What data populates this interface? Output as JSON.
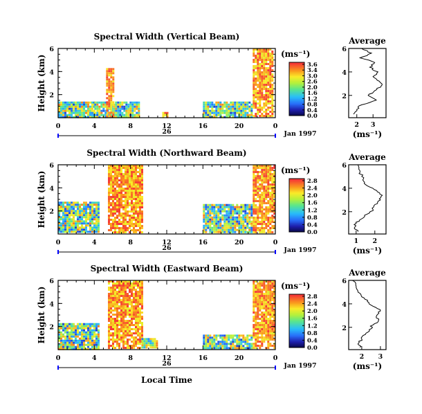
{
  "chart_data": [
    {
      "type": "heatmap",
      "title": "Spectral Width (Vertical Beam)",
      "ylabel": "Height (km)",
      "x_range": [
        0,
        24
      ],
      "y_range": [
        0,
        6
      ],
      "xticks": [
        "0",
        "4",
        "8",
        "12",
        "16",
        "20",
        "0"
      ],
      "yticks": [
        "6",
        "4",
        "2"
      ],
      "date_label": "26",
      "month_label": "Jan 1997",
      "colorbar": {
        "unit": "(ms⁻¹)",
        "tick_labels": [
          "3.6",
          "3.4",
          "3.0",
          "2.6",
          "2.0",
          "1.6",
          "1.2",
          "0.8",
          "0.4",
          "0.0"
        ],
        "range": [
          0,
          3.6
        ]
      },
      "data_extents": [
        {
          "t_start": 0.0,
          "t_end": 4.0,
          "h_min": 0.1,
          "h_max": 1.4
        },
        {
          "t_start": 4.0,
          "t_end": 9.0,
          "h_min": 0.1,
          "h_max": 1.4
        },
        {
          "t_start": 5.3,
          "t_end": 6.0,
          "h_min": 0.1,
          "h_max": 4.3
        },
        {
          "t_start": 11.5,
          "t_end": 12.0,
          "h_min": 0.1,
          "h_max": 0.5
        },
        {
          "t_start": 16.0,
          "t_end": 21.5,
          "h_min": 0.1,
          "h_max": 1.4
        },
        {
          "t_start": 21.5,
          "t_end": 23.7,
          "h_min": 0.1,
          "h_max": 6.0
        }
      ],
      "average_profile": {
        "title": "Average",
        "xlabel": "(ms⁻¹)",
        "xticks": [
          "2",
          "3"
        ],
        "xlim": [
          1.5,
          3.8
        ],
        "yticks": [
          "6",
          "4",
          "2"
        ],
        "ylim": [
          0.1,
          6.0
        ],
        "heights": [
          6.0,
          5.6,
          5.2,
          4.8,
          4.4,
          4.0,
          3.6,
          3.2,
          2.8,
          2.4,
          2.0,
          1.6,
          1.2,
          0.8,
          0.4
        ],
        "values": [
          2.3,
          2.9,
          2.2,
          3.1,
          2.8,
          3.3,
          3.0,
          3.4,
          3.5,
          3.1,
          2.7,
          3.2,
          2.3,
          2.0,
          1.8
        ]
      }
    },
    {
      "type": "heatmap",
      "title": "Spectral Width (Northward Beam)",
      "ylabel": "Height (km)",
      "x_range": [
        0,
        24
      ],
      "y_range": [
        0,
        6
      ],
      "xticks": [
        "0",
        "4",
        "8",
        "12",
        "16",
        "20",
        "0"
      ],
      "yticks": [
        "6",
        "4",
        "2"
      ],
      "date_label": "26",
      "month_label": "Jan 1997",
      "colorbar": {
        "unit": "(ms⁻¹)",
        "tick_labels": [
          "2.8",
          "2.4",
          "2.0",
          "1.6",
          "1.2",
          "0.8",
          "0.4",
          "0.0"
        ],
        "range": [
          0,
          2.8
        ]
      },
      "data_extents": [
        {
          "t_start": 0.0,
          "t_end": 4.5,
          "h_min": 0.1,
          "h_max": 2.8
        },
        {
          "t_start": 5.5,
          "t_end": 9.2,
          "h_min": 0.1,
          "h_max": 6.0
        },
        {
          "t_start": 16.0,
          "t_end": 21.5,
          "h_min": 0.1,
          "h_max": 2.6
        },
        {
          "t_start": 21.5,
          "t_end": 24.0,
          "h_min": 0.1,
          "h_max": 6.0
        }
      ],
      "average_profile": {
        "title": "Average",
        "xlabel": "(ms⁻¹)",
        "xticks": [
          "1",
          "2"
        ],
        "xlim": [
          0.6,
          2.6
        ],
        "yticks": [
          "6",
          "4",
          "2"
        ],
        "ylim": [
          0.1,
          6.0
        ],
        "heights": [
          6.0,
          5.5,
          5.0,
          4.6,
          4.2,
          3.8,
          3.4,
          3.0,
          2.6,
          2.2,
          1.8,
          1.4,
          1.0,
          0.6,
          0.3
        ],
        "values": [
          1.1,
          1.2,
          1.3,
          1.4,
          1.6,
          2.1,
          2.4,
          2.3,
          2.0,
          1.9,
          1.6,
          1.3,
          1.0,
          0.9,
          1.1
        ]
      }
    },
    {
      "type": "heatmap",
      "title": "Spectral Width (Eastward Beam)",
      "ylabel": "Height (km)",
      "xlabel": "Local Time",
      "x_range": [
        0,
        24
      ],
      "y_range": [
        0,
        6
      ],
      "xticks": [
        "0",
        "4",
        "8",
        "12",
        "16",
        "20",
        "0"
      ],
      "yticks": [
        "6",
        "4",
        "2"
      ],
      "date_label": "26",
      "month_label": "Jan 1997",
      "colorbar": {
        "unit": "(ms⁻¹)",
        "tick_labels": [
          "2.8",
          "2.4",
          "2.0",
          "1.6",
          "1.2",
          "0.8",
          "0.4",
          "0.0"
        ],
        "range": [
          0,
          2.8
        ]
      },
      "data_extents": [
        {
          "t_start": 0.0,
          "t_end": 4.5,
          "h_min": 0.1,
          "h_max": 2.3
        },
        {
          "t_start": 5.5,
          "t_end": 9.2,
          "h_min": 0.1,
          "h_max": 6.0
        },
        {
          "t_start": 9.2,
          "t_end": 11.0,
          "h_min": 0.1,
          "h_max": 1.0
        },
        {
          "t_start": 16.0,
          "t_end": 21.5,
          "h_min": 0.1,
          "h_max": 1.3
        },
        {
          "t_start": 21.5,
          "t_end": 24.0,
          "h_min": 0.1,
          "h_max": 6.0
        }
      ],
      "average_profile": {
        "title": "Average",
        "xlabel": "(ms⁻¹)",
        "xticks": [
          "2",
          "3"
        ],
        "xlim": [
          1.3,
          3.3
        ],
        "yticks": [
          "6",
          "4",
          "2"
        ],
        "ylim": [
          0.1,
          6.0
        ],
        "heights": [
          6.0,
          5.5,
          5.0,
          4.6,
          4.2,
          3.8,
          3.4,
          3.0,
          2.6,
          2.2,
          1.8,
          1.4,
          1.0,
          0.6,
          0.3
        ],
        "values": [
          1.5,
          1.7,
          1.8,
          2.0,
          2.3,
          2.6,
          3.0,
          2.8,
          2.9,
          2.6,
          2.4,
          2.2,
          2.0,
          1.8,
          1.9
        ]
      }
    }
  ]
}
